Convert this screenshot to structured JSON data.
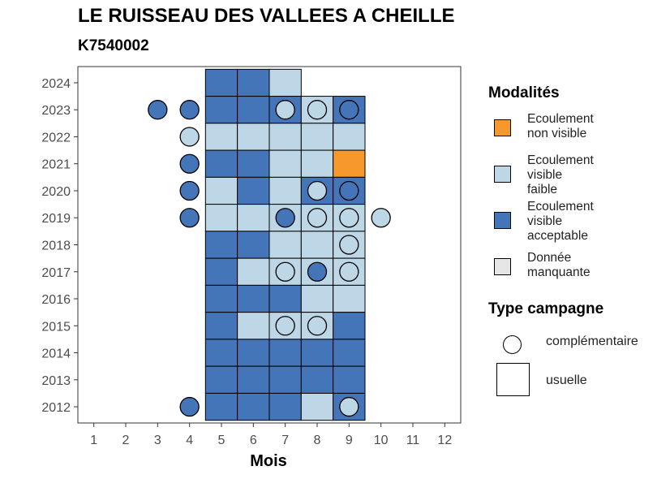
{
  "title": "LE RUISSEAU DES VALLEES A CHEILLE",
  "subtitle": "K7540002",
  "colors": {
    "Ecoulement non visible": "#F7982C",
    "Ecoulement visible faible": "#BDD7E7",
    "Ecoulement visible acceptable": "#4575B9",
    "Donnée manquante": "#E6E6E6"
  },
  "legend": {
    "modalites_title": "Modalités",
    "modalites": [
      {
        "lines": [
          "Ecoulement",
          "non visible"
        ],
        "key": "Ecoulement non visible"
      },
      {
        "lines": [
          "Ecoulement",
          "visible",
          "faible"
        ],
        "key": "Ecoulement visible faible"
      },
      {
        "lines": [
          "Ecoulement",
          "visible",
          "acceptable"
        ],
        "key": "Ecoulement visible acceptable"
      },
      {
        "lines": [
          "Donnée",
          "manquante"
        ],
        "key": "Donnée manquante"
      }
    ],
    "campagne_title": "Type campagne",
    "campagne": [
      {
        "label": "complémentaire",
        "shape": "circle"
      },
      {
        "label": "usuelle",
        "shape": "square"
      }
    ]
  },
  "chart_data": {
    "type": "heatmap",
    "title": "LE RUISSEAU DES VALLEES A CHEILLE",
    "subtitle": "K7540002",
    "xlabel": "Mois",
    "ylabel": "",
    "x_ticks": [
      1,
      2,
      3,
      4,
      5,
      6,
      7,
      8,
      9,
      10,
      11,
      12
    ],
    "y_ticks": [
      2012,
      2013,
      2014,
      2015,
      2016,
      2017,
      2018,
      2019,
      2020,
      2021,
      2022,
      2023,
      2024
    ],
    "xlim": [
      0.5,
      12.5
    ],
    "ylim": [
      2011.4,
      2024.6
    ],
    "grid": false,
    "legend_position": "right",
    "usuelle": [
      {
        "year": 2024,
        "month": 5,
        "value": "Ecoulement visible acceptable"
      },
      {
        "year": 2024,
        "month": 6,
        "value": "Ecoulement visible acceptable"
      },
      {
        "year": 2024,
        "month": 7,
        "value": "Ecoulement visible faible"
      },
      {
        "year": 2023,
        "month": 5,
        "value": "Ecoulement visible acceptable"
      },
      {
        "year": 2023,
        "month": 6,
        "value": "Ecoulement visible acceptable"
      },
      {
        "year": 2023,
        "month": 7,
        "value": "Ecoulement visible acceptable"
      },
      {
        "year": 2023,
        "month": 8,
        "value": "Ecoulement visible faible"
      },
      {
        "year": 2023,
        "month": 9,
        "value": "Ecoulement visible acceptable"
      },
      {
        "year": 2022,
        "month": 5,
        "value": "Ecoulement visible faible"
      },
      {
        "year": 2022,
        "month": 6,
        "value": "Ecoulement visible faible"
      },
      {
        "year": 2022,
        "month": 7,
        "value": "Ecoulement visible faible"
      },
      {
        "year": 2022,
        "month": 8,
        "value": "Ecoulement visible faible"
      },
      {
        "year": 2022,
        "month": 9,
        "value": "Ecoulement visible faible"
      },
      {
        "year": 2021,
        "month": 5,
        "value": "Ecoulement visible acceptable"
      },
      {
        "year": 2021,
        "month": 6,
        "value": "Ecoulement visible acceptable"
      },
      {
        "year": 2021,
        "month": 7,
        "value": "Ecoulement visible faible"
      },
      {
        "year": 2021,
        "month": 8,
        "value": "Ecoulement visible faible"
      },
      {
        "year": 2021,
        "month": 9,
        "value": "Ecoulement non visible"
      },
      {
        "year": 2020,
        "month": 5,
        "value": "Ecoulement visible faible"
      },
      {
        "year": 2020,
        "month": 6,
        "value": "Ecoulement visible acceptable"
      },
      {
        "year": 2020,
        "month": 7,
        "value": "Ecoulement visible faible"
      },
      {
        "year": 2020,
        "month": 8,
        "value": "Ecoulement visible acceptable"
      },
      {
        "year": 2020,
        "month": 9,
        "value": "Ecoulement visible acceptable"
      },
      {
        "year": 2019,
        "month": 5,
        "value": "Ecoulement visible faible"
      },
      {
        "year": 2019,
        "month": 6,
        "value": "Ecoulement visible faible"
      },
      {
        "year": 2019,
        "month": 7,
        "value": "Ecoulement visible faible"
      },
      {
        "year": 2019,
        "month": 8,
        "value": "Ecoulement visible faible"
      },
      {
        "year": 2019,
        "month": 9,
        "value": "Ecoulement visible faible"
      },
      {
        "year": 2018,
        "month": 5,
        "value": "Ecoulement visible acceptable"
      },
      {
        "year": 2018,
        "month": 6,
        "value": "Ecoulement visible acceptable"
      },
      {
        "year": 2018,
        "month": 7,
        "value": "Ecoulement visible faible"
      },
      {
        "year": 2018,
        "month": 8,
        "value": "Ecoulement visible faible"
      },
      {
        "year": 2018,
        "month": 9,
        "value": "Ecoulement visible faible"
      },
      {
        "year": 2017,
        "month": 5,
        "value": "Ecoulement visible acceptable"
      },
      {
        "year": 2017,
        "month": 6,
        "value": "Ecoulement visible faible"
      },
      {
        "year": 2017,
        "month": 7,
        "value": "Ecoulement visible faible"
      },
      {
        "year": 2017,
        "month": 8,
        "value": "Ecoulement visible faible"
      },
      {
        "year": 2017,
        "month": 9,
        "value": "Ecoulement visible faible"
      },
      {
        "year": 2016,
        "month": 5,
        "value": "Ecoulement visible acceptable"
      },
      {
        "year": 2016,
        "month": 6,
        "value": "Ecoulement visible acceptable"
      },
      {
        "year": 2016,
        "month": 7,
        "value": "Ecoulement visible acceptable"
      },
      {
        "year": 2016,
        "month": 8,
        "value": "Ecoulement visible faible"
      },
      {
        "year": 2016,
        "month": 9,
        "value": "Ecoulement visible faible"
      },
      {
        "year": 2015,
        "month": 5,
        "value": "Ecoulement visible acceptable"
      },
      {
        "year": 2015,
        "month": 6,
        "value": "Ecoulement visible faible"
      },
      {
        "year": 2015,
        "month": 7,
        "value": "Ecoulement visible faible"
      },
      {
        "year": 2015,
        "month": 8,
        "value": "Ecoulement visible faible"
      },
      {
        "year": 2015,
        "month": 9,
        "value": "Ecoulement visible acceptable"
      },
      {
        "year": 2014,
        "month": 5,
        "value": "Ecoulement visible acceptable"
      },
      {
        "year": 2014,
        "month": 6,
        "value": "Ecoulement visible acceptable"
      },
      {
        "year": 2014,
        "month": 7,
        "value": "Ecoulement visible acceptable"
      },
      {
        "year": 2014,
        "month": 8,
        "value": "Ecoulement visible acceptable"
      },
      {
        "year": 2014,
        "month": 9,
        "value": "Ecoulement visible acceptable"
      },
      {
        "year": 2013,
        "month": 5,
        "value": "Ecoulement visible acceptable"
      },
      {
        "year": 2013,
        "month": 6,
        "value": "Ecoulement visible acceptable"
      },
      {
        "year": 2013,
        "month": 7,
        "value": "Ecoulement visible acceptable"
      },
      {
        "year": 2013,
        "month": 8,
        "value": "Ecoulement visible acceptable"
      },
      {
        "year": 2013,
        "month": 9,
        "value": "Ecoulement visible acceptable"
      },
      {
        "year": 2012,
        "month": 5,
        "value": "Ecoulement visible acceptable"
      },
      {
        "year": 2012,
        "month": 6,
        "value": "Ecoulement visible acceptable"
      },
      {
        "year": 2012,
        "month": 7,
        "value": "Ecoulement visible acceptable"
      },
      {
        "year": 2012,
        "month": 8,
        "value": "Ecoulement visible faible"
      },
      {
        "year": 2012,
        "month": 9,
        "value": "Ecoulement visible acceptable"
      }
    ],
    "complementaire": [
      {
        "year": 2023,
        "month": 3,
        "value": "Ecoulement visible acceptable"
      },
      {
        "year": 2023,
        "month": 4,
        "value": "Ecoulement visible acceptable"
      },
      {
        "year": 2023,
        "month": 7,
        "value": "Ecoulement visible faible"
      },
      {
        "year": 2023,
        "month": 8,
        "value": "Ecoulement visible faible"
      },
      {
        "year": 2023,
        "month": 9,
        "value": "Ecoulement visible acceptable"
      },
      {
        "year": 2022,
        "month": 4,
        "value": "Ecoulement visible faible"
      },
      {
        "year": 2021,
        "month": 4,
        "value": "Ecoulement visible acceptable"
      },
      {
        "year": 2020,
        "month": 4,
        "value": "Ecoulement visible acceptable"
      },
      {
        "year": 2020,
        "month": 8,
        "value": "Ecoulement visible faible"
      },
      {
        "year": 2020,
        "month": 9,
        "value": "Ecoulement visible acceptable"
      },
      {
        "year": 2019,
        "month": 4,
        "value": "Ecoulement visible acceptable"
      },
      {
        "year": 2019,
        "month": 7,
        "value": "Ecoulement visible acceptable"
      },
      {
        "year": 2019,
        "month": 8,
        "value": "Ecoulement visible faible"
      },
      {
        "year": 2019,
        "month": 9,
        "value": "Ecoulement visible faible"
      },
      {
        "year": 2019,
        "month": 10,
        "value": "Ecoulement visible faible"
      },
      {
        "year": 2018,
        "month": 9,
        "value": "Ecoulement visible faible"
      },
      {
        "year": 2017,
        "month": 7,
        "value": "Ecoulement visible faible"
      },
      {
        "year": 2017,
        "month": 8,
        "value": "Ecoulement visible acceptable"
      },
      {
        "year": 2017,
        "month": 9,
        "value": "Ecoulement visible faible"
      },
      {
        "year": 2015,
        "month": 7,
        "value": "Ecoulement visible faible"
      },
      {
        "year": 2015,
        "month": 8,
        "value": "Ecoulement visible faible"
      },
      {
        "year": 2012,
        "month": 4,
        "value": "Ecoulement visible acceptable"
      },
      {
        "year": 2012,
        "month": 9,
        "value": "Ecoulement visible faible"
      }
    ]
  }
}
